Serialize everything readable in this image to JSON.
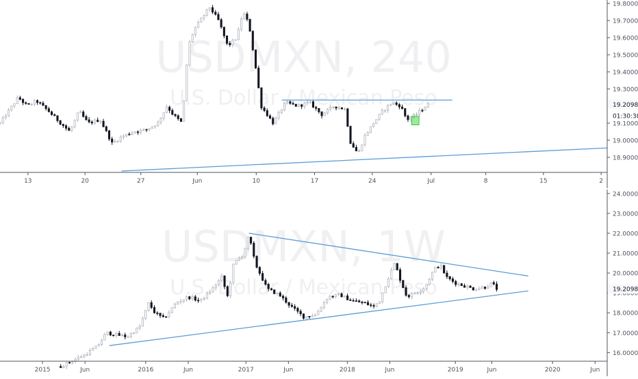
{
  "colors": {
    "bull": "#b2b5be",
    "bear": "#131722",
    "trendline": "#5b9bd5",
    "axis": "#50535e",
    "label_text": "#131722",
    "tick_text": "#50535e",
    "watermark": "#f0f0f3",
    "price_tag_bg": "#f7f8fa",
    "highlight": "#32c832"
  },
  "chart_data": [
    {
      "type": "candlestick",
      "id": "top",
      "watermark": {
        "symbol": "USDMXN, 240",
        "description": "U.S. Dollar / Mexican Peso"
      },
      "ylim": [
        18.82,
        19.82
      ],
      "yticks": [
        "19.80000",
        "19.70000",
        "19.60000",
        "19.50000",
        "19.40000",
        "19.30000",
        "19.10000",
        "19.00000",
        "18.90000"
      ],
      "ytick_values": [
        19.8,
        19.7,
        19.6,
        19.5,
        19.4,
        19.3,
        19.1,
        19.0,
        18.9
      ],
      "last_price": {
        "label": "19.20987",
        "value": 19.20987
      },
      "countdown": {
        "label": "01:30:38",
        "value": 19.145
      },
      "xticks": [
        {
          "label": "13",
          "pos": 0.046
        },
        {
          "label": "20",
          "pos": 0.14
        },
        {
          "label": "27",
          "pos": 0.232
        },
        {
          "label": "Jun",
          "pos": 0.325
        },
        {
          "label": "10",
          "pos": 0.422
        },
        {
          "label": "17",
          "pos": 0.518
        },
        {
          "label": "24",
          "pos": 0.613
        },
        {
          "label": "Jul",
          "pos": 0.71
        },
        {
          "label": "8",
          "pos": 0.8
        },
        {
          "label": "15",
          "pos": 0.895
        },
        {
          "label": "2",
          "pos": 0.99
        }
      ],
      "candles_span": [
        0.0,
        0.705
      ],
      "keypoints": [
        [
          0.0,
          19.1
        ],
        [
          0.03,
          19.25
        ],
        [
          0.045,
          19.2
        ],
        [
          0.06,
          19.23
        ],
        [
          0.08,
          19.17
        ],
        [
          0.1,
          19.1
        ],
        [
          0.115,
          19.05
        ],
        [
          0.13,
          19.17
        ],
        [
          0.145,
          19.1
        ],
        [
          0.165,
          19.12
        ],
        [
          0.185,
          18.98
        ],
        [
          0.2,
          19.02
        ],
        [
          0.22,
          19.05
        ],
        [
          0.24,
          19.06
        ],
        [
          0.26,
          19.1
        ],
        [
          0.275,
          19.2
        ],
        [
          0.285,
          19.15
        ],
        [
          0.3,
          19.1
        ],
        [
          0.31,
          19.55
        ],
        [
          0.32,
          19.65
        ],
        [
          0.33,
          19.7
        ],
        [
          0.345,
          19.78
        ],
        [
          0.36,
          19.7
        ],
        [
          0.375,
          19.55
        ],
        [
          0.39,
          19.6
        ],
        [
          0.4,
          19.75
        ],
        [
          0.41,
          19.68
        ],
        [
          0.42,
          19.45
        ],
        [
          0.43,
          19.2
        ],
        [
          0.45,
          19.1
        ],
        [
          0.47,
          19.22
        ],
        [
          0.49,
          19.2
        ],
        [
          0.51,
          19.22
        ],
        [
          0.53,
          19.15
        ],
        [
          0.55,
          19.2
        ],
        [
          0.57,
          19.18
        ],
        [
          0.575,
          19.0
        ],
        [
          0.59,
          18.92
        ],
        [
          0.6,
          19.02
        ],
        [
          0.615,
          19.1
        ],
        [
          0.63,
          19.17
        ],
        [
          0.645,
          19.22
        ],
        [
          0.66,
          19.2
        ],
        [
          0.67,
          19.12
        ],
        [
          0.685,
          19.15
        ],
        [
          0.695,
          19.18
        ],
        [
          0.705,
          19.21
        ]
      ],
      "highlight_box": {
        "x": [
          0.678,
          0.69
        ],
        "y": [
          19.09,
          19.14
        ]
      },
      "lines": [
        {
          "name": "resistance",
          "x": [
            0.464,
            0.745
          ],
          "y": [
            19.235,
            19.235
          ]
        },
        {
          "name": "support",
          "x": [
            0.2,
            1.0
          ],
          "y": [
            18.82,
            18.955
          ]
        }
      ]
    },
    {
      "type": "candlestick",
      "id": "bottom",
      "watermark": {
        "symbol": "USDMXN, 1W",
        "description": "U.S. Dollar / Mexican Peso"
      },
      "ylim": [
        15.6,
        24.2
      ],
      "yticks": [
        "24.00000",
        "23.00000",
        "22.00000",
        "21.00000",
        "20.00000",
        "19.00000",
        "18.00000",
        "17.00000",
        "16.00000"
      ],
      "ytick_values": [
        24,
        23,
        22,
        21,
        20,
        19,
        18,
        17,
        16
      ],
      "last_price": {
        "label": "19.20987",
        "value": 19.20987
      },
      "countdown": {
        "label": "",
        "value": 19.0
      },
      "xticks": [
        {
          "label": "2015",
          "pos": 0.07
        },
        {
          "label": "Jun",
          "pos": 0.14
        },
        {
          "label": "2016",
          "pos": 0.24
        },
        {
          "label": "Jun",
          "pos": 0.31
        },
        {
          "label": "2017",
          "pos": 0.405
        },
        {
          "label": "Jun",
          "pos": 0.475
        },
        {
          "label": "2018",
          "pos": 0.572
        },
        {
          "label": "Jun",
          "pos": 0.642
        },
        {
          "label": "2019",
          "pos": 0.75
        },
        {
          "label": "Jun",
          "pos": 0.81
        },
        {
          "label": "2020",
          "pos": 0.91
        },
        {
          "label": "Jun",
          "pos": 0.98
        }
      ],
      "candles_span": [
        0.1,
        0.818
      ],
      "keypoints": [
        [
          0.1,
          15.3
        ],
        [
          0.12,
          15.6
        ],
        [
          0.14,
          15.9
        ],
        [
          0.16,
          16.3
        ],
        [
          0.175,
          17.0
        ],
        [
          0.19,
          16.9
        ],
        [
          0.21,
          16.8
        ],
        [
          0.23,
          17.3
        ],
        [
          0.245,
          18.5
        ],
        [
          0.255,
          18.0
        ],
        [
          0.27,
          17.7
        ],
        [
          0.29,
          18.5
        ],
        [
          0.31,
          18.8
        ],
        [
          0.33,
          18.6
        ],
        [
          0.35,
          19.2
        ],
        [
          0.365,
          19.8
        ],
        [
          0.375,
          18.8
        ],
        [
          0.385,
          20.5
        ],
        [
          0.4,
          20.9
        ],
        [
          0.41,
          21.9
        ],
        [
          0.42,
          20.5
        ],
        [
          0.44,
          19.2
        ],
        [
          0.46,
          18.9
        ],
        [
          0.48,
          18.3
        ],
        [
          0.5,
          17.8
        ],
        [
          0.52,
          17.9
        ],
        [
          0.54,
          18.8
        ],
        [
          0.56,
          18.9
        ],
        [
          0.58,
          18.6
        ],
        [
          0.6,
          18.5
        ],
        [
          0.615,
          18.3
        ],
        [
          0.625,
          18.6
        ],
        [
          0.64,
          19.8
        ],
        [
          0.65,
          20.5
        ],
        [
          0.66,
          19.6
        ],
        [
          0.67,
          18.8
        ],
        [
          0.69,
          19.1
        ],
        [
          0.7,
          19.3
        ],
        [
          0.715,
          20.2
        ],
        [
          0.725,
          20.4
        ],
        [
          0.735,
          19.8
        ],
        [
          0.75,
          19.5
        ],
        [
          0.77,
          19.3
        ],
        [
          0.78,
          19.2
        ],
        [
          0.8,
          19.3
        ],
        [
          0.81,
          19.5
        ],
        [
          0.818,
          19.21
        ]
      ],
      "highlight_box": null,
      "lines": [
        {
          "name": "upper",
          "x": [
            0.41,
            0.87
          ],
          "y": [
            22.0,
            19.85
          ]
        },
        {
          "name": "lower",
          "x": [
            0.18,
            0.87
          ],
          "y": [
            16.35,
            19.1
          ]
        }
      ]
    }
  ]
}
